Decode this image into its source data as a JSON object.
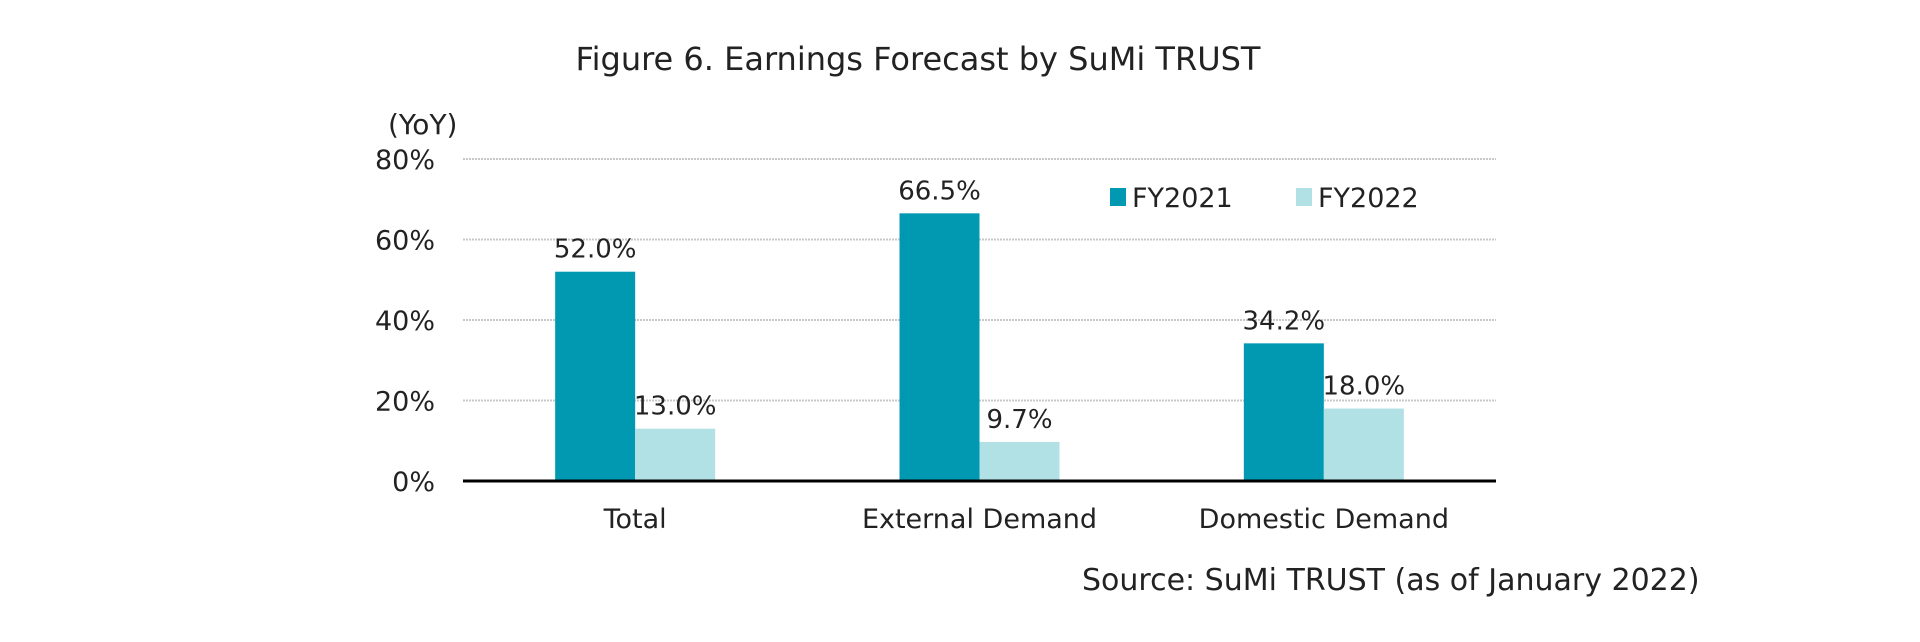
{
  "chart_data": {
    "type": "bar",
    "title": "Figure 6. Earnings Forecast by SuMi TRUST",
    "ylabel": "(YoY)",
    "xlabel": "",
    "categories": [
      "Total",
      "External Demand",
      "Domestic Demand"
    ],
    "series": [
      {
        "name": "FY2021",
        "values": [
          52.0,
          66.5,
          34.2
        ],
        "labels": [
          "52.0%",
          "66.5%",
          "34.2%"
        ],
        "color": "#0099B1"
      },
      {
        "name": "FY2022",
        "values": [
          13.0,
          9.7,
          18.0
        ],
        "labels": [
          "13.0%",
          "9.7%",
          "18.0%"
        ],
        "color": "#B1E0E5"
      }
    ],
    "ylim": [
      0,
      80
    ],
    "yticks": [
      0,
      20,
      40,
      60,
      80
    ],
    "ytick_labels": [
      "0%",
      "20%",
      "40%",
      "60%",
      "80%"
    ],
    "grid": true,
    "legend_position": "top-right",
    "source": "Source: SuMi TRUST (as of January 2022)"
  }
}
